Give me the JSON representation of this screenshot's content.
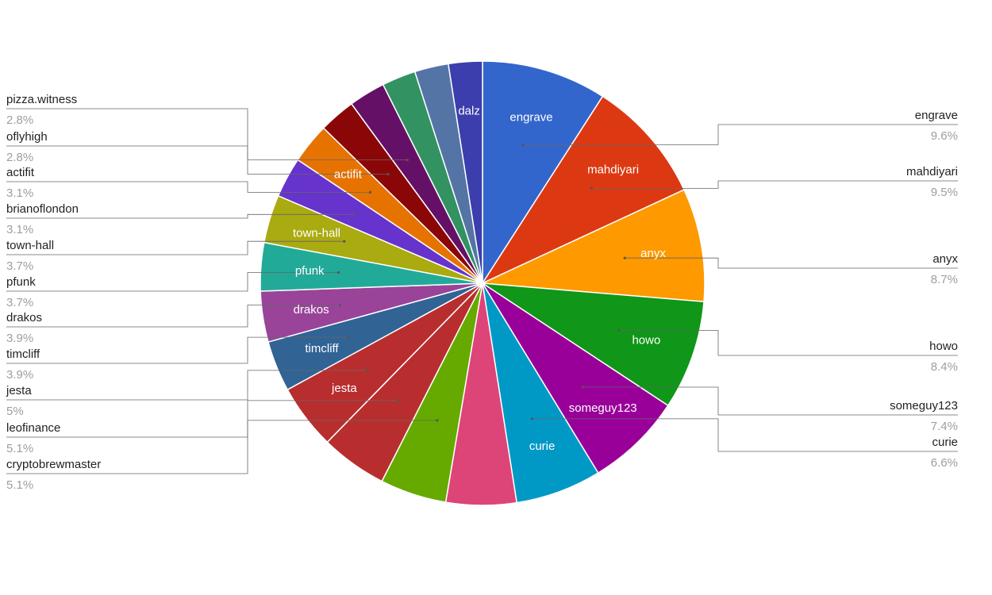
{
  "chart_data": {
    "type": "pie",
    "title": "",
    "slices": [
      {
        "label": "engrave",
        "percent_text": "9.6%",
        "value": 9.6,
        "color": "#3366cc",
        "inside_label": true,
        "leader": "right"
      },
      {
        "label": "mahdiyari",
        "percent_text": "9.5%",
        "value": 9.5,
        "color": "#dc3912",
        "inside_label": true,
        "leader": "right"
      },
      {
        "label": "anyx",
        "percent_text": "8.7%",
        "value": 8.7,
        "color": "#ff9900",
        "inside_label": true,
        "leader": "right"
      },
      {
        "label": "howo",
        "percent_text": "8.4%",
        "value": 8.4,
        "color": "#109618",
        "inside_label": true,
        "leader": "right"
      },
      {
        "label": "someguy123",
        "percent_text": "7.4%",
        "value": 7.4,
        "color": "#990099",
        "inside_label": true,
        "leader": "right"
      },
      {
        "label": "curie",
        "percent_text": "6.6%",
        "value": 6.6,
        "color": "#0099c6",
        "inside_label": true,
        "leader": "right"
      },
      {
        "label": "",
        "percent_text": "",
        "value": 5.4,
        "color": "#dd4477",
        "inside_label": false,
        "leader": "none"
      },
      {
        "label": "cryptobrewmaster",
        "percent_text": "5.1%",
        "value": 5.1,
        "color": "#66aa00",
        "inside_label": false,
        "leader": "left"
      },
      {
        "label": "leofinance",
        "percent_text": "5.1%",
        "value": 5.1,
        "color": "#b82e2e",
        "inside_label": false,
        "leader": "left"
      },
      {
        "label": "jesta",
        "percent_text": "5%",
        "value": 5.0,
        "color": "#b82e2e",
        "inside_label": true,
        "leader": "left"
      },
      {
        "label": "timcliff",
        "percent_text": "3.9%",
        "value": 3.9,
        "color": "#316395",
        "inside_label": true,
        "leader": "left"
      },
      {
        "label": "drakos",
        "percent_text": "3.9%",
        "value": 3.9,
        "color": "#994499",
        "inside_label": true,
        "leader": "left"
      },
      {
        "label": "pfunk",
        "percent_text": "3.7%",
        "value": 3.7,
        "color": "#22aa99",
        "inside_label": true,
        "leader": "left"
      },
      {
        "label": "town-hall",
        "percent_text": "3.7%",
        "value": 3.7,
        "color": "#aaaa11",
        "inside_label": true,
        "leader": "left"
      },
      {
        "label": "brianoflondon",
        "percent_text": "3.1%",
        "value": 3.1,
        "color": "#6633cc",
        "inside_label": false,
        "leader": "left"
      },
      {
        "label": "actifit",
        "percent_text": "3.1%",
        "value": 3.1,
        "color": "#e67300",
        "inside_label": true,
        "leader": "left"
      },
      {
        "label": "oflyhigh",
        "percent_text": "2.8%",
        "value": 2.8,
        "color": "#8b0707",
        "inside_label": false,
        "leader": "left"
      },
      {
        "label": "pizza.witness",
        "percent_text": "2.8%",
        "value": 2.8,
        "color": "#651067",
        "inside_label": false,
        "leader": "left"
      },
      {
        "label": "",
        "percent_text": "",
        "value": 2.6,
        "color": "#329262",
        "inside_label": false,
        "leader": "none"
      },
      {
        "label": "",
        "percent_text": "",
        "value": 2.6,
        "color": "#5574a6",
        "inside_label": false,
        "leader": "none"
      },
      {
        "label": "dalz",
        "percent_text": "",
        "value": 2.6,
        "color": "#3b3eac",
        "inside_label": true,
        "leader": "none"
      }
    ],
    "legend": "none",
    "label_placement": "leader lines: right side for the six largest slices, left side for the smaller ones",
    "slice_border_color": "#ffffff"
  }
}
